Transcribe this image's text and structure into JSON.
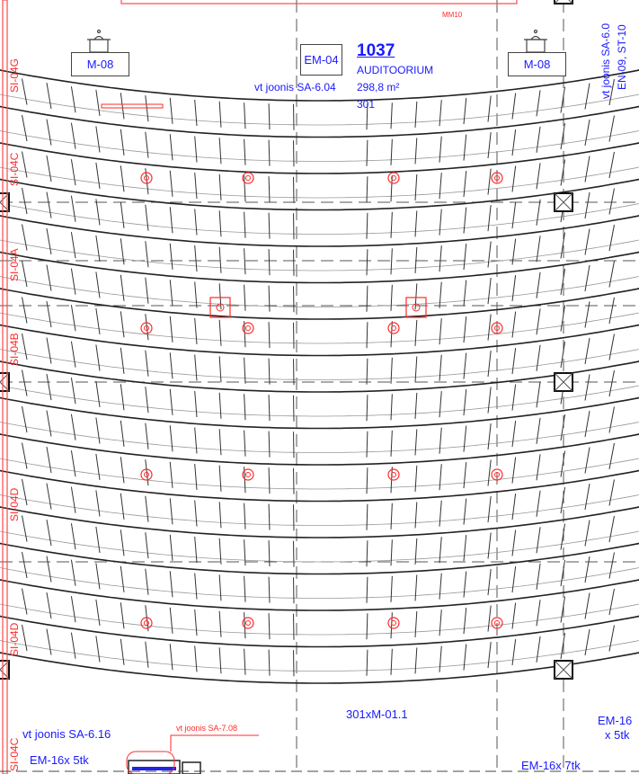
{
  "room": {
    "number": "1037",
    "name": "AUDITOORIUM",
    "area": "298,8 m²",
    "seats": "301"
  },
  "equipment": {
    "left_box": "M-08",
    "right_box": "M-08",
    "center_box": "EM-04",
    "seat_tag": "301xM-01.1",
    "bottom_left": "EM-16x 5tk",
    "bottom_right": "EM-16x 7tk",
    "right_edge_line1": "EM-16",
    "right_edge_line2": "x 5tk"
  },
  "references": {
    "top_center": "vt joonis SA-6.04",
    "top_red": "MM10",
    "bottom_left": "vt joonis SA-6.16",
    "bottom_red": "vt joonis SA-7.08",
    "right_vertical_1": "vt joonis SA-6.0",
    "right_vertical_2": "EN-09, ST-10"
  },
  "wall_labels": [
    "SI-04G",
    "SI-04C",
    "SI-04A",
    "SI-04B",
    "SI-04D",
    "SI-04D",
    "SI-04C"
  ],
  "colors": {
    "annotation_blue": "#1a1aff",
    "fire_red": "#ff2a2a",
    "linework": "#222222",
    "seat_tag_highlight": "#cfe3cf"
  }
}
